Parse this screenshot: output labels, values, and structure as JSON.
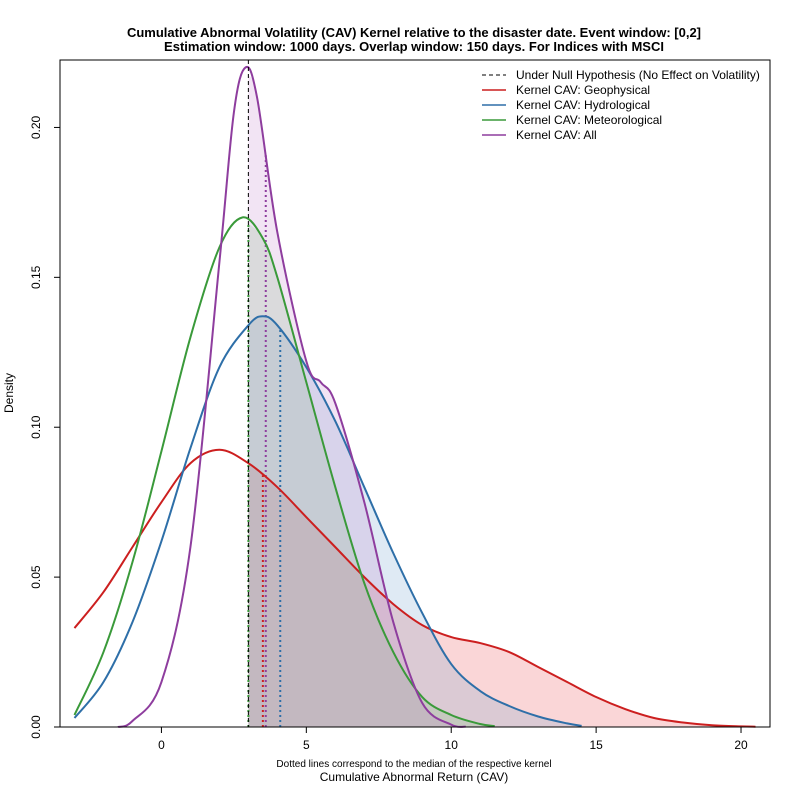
{
  "chart_data": {
    "type": "line",
    "title": "Cumulative Abnormal Volatility (CAV) Kernel relative to the disaster date. Event window: [0,2]",
    "subtitle": "Estimation window: 1000 days. Overlap window: 150 days. For Indices with MSCI",
    "xlabel": "Cumulative Abnormal Return (CAV)",
    "xlabel_note": "Dotted lines correspond to the median of the respective kernel",
    "ylabel": "Density",
    "xlim": [
      -3.5,
      21.0
    ],
    "ylim": [
      0.0,
      0.2225
    ],
    "x_ticks": [
      0,
      5,
      10,
      15,
      20
    ],
    "x_tick_labels": [
      "0",
      "5",
      "10",
      "15",
      "20"
    ],
    "y_ticks": [
      0.0,
      0.05,
      0.1,
      0.15,
      0.2
    ],
    "y_tick_labels": [
      "0.00",
      "0.05",
      "0.10",
      "0.15",
      "0.20"
    ],
    "grid": false,
    "legend_position": "top-right",
    "null_hypothesis": {
      "name": "Under Null Hypothesis (No Effect on Volatility)",
      "x": 3.0,
      "color": "#000000"
    },
    "series": [
      {
        "name": "Kernel CAV: Geophysical",
        "color": "#cc1f1f",
        "fill": "rgba(235,90,95,0.25)",
        "median": 3.5,
        "points": [
          [
            -3.0,
            0.033
          ],
          [
            -2.0,
            0.045
          ],
          [
            -1.0,
            0.06
          ],
          [
            0.0,
            0.075
          ],
          [
            1.0,
            0.088
          ],
          [
            2.0,
            0.0925
          ],
          [
            3.0,
            0.088
          ],
          [
            4.0,
            0.08
          ],
          [
            5.0,
            0.07
          ],
          [
            6.0,
            0.06
          ],
          [
            7.0,
            0.05
          ],
          [
            8.0,
            0.041
          ],
          [
            9.0,
            0.034
          ],
          [
            10.0,
            0.03
          ],
          [
            11.0,
            0.028
          ],
          [
            12.0,
            0.025
          ],
          [
            13.0,
            0.02
          ],
          [
            14.0,
            0.015
          ],
          [
            15.0,
            0.01
          ],
          [
            16.0,
            0.006
          ],
          [
            17.0,
            0.003
          ],
          [
            18.0,
            0.0015
          ],
          [
            19.0,
            0.0006
          ],
          [
            20.0,
            0.0002
          ],
          [
            20.5,
            0.0001
          ]
        ]
      },
      {
        "name": "Kernel CAV: Hydrological",
        "color": "#2e6fa8",
        "fill": "rgba(110,160,205,0.22)",
        "median": 4.1,
        "points": [
          [
            -3.0,
            0.003
          ],
          [
            -2.0,
            0.015
          ],
          [
            -1.0,
            0.035
          ],
          [
            0.0,
            0.062
          ],
          [
            1.0,
            0.093
          ],
          [
            2.0,
            0.12
          ],
          [
            3.0,
            0.134
          ],
          [
            3.5,
            0.137
          ],
          [
            4.0,
            0.134
          ],
          [
            5.0,
            0.12
          ],
          [
            6.0,
            0.102
          ],
          [
            7.0,
            0.08
          ],
          [
            8.0,
            0.058
          ],
          [
            9.0,
            0.038
          ],
          [
            10.0,
            0.021
          ],
          [
            11.0,
            0.012
          ],
          [
            12.0,
            0.007
          ],
          [
            13.0,
            0.0035
          ],
          [
            14.0,
            0.0012
          ],
          [
            14.5,
            0.0004
          ]
        ]
      },
      {
        "name": "Kernel CAV: Meteorological",
        "color": "#3a9a3a",
        "fill": "rgba(120,200,120,0.22)",
        "median": 3.0,
        "points": [
          [
            -3.0,
            0.004
          ],
          [
            -2.0,
            0.025
          ],
          [
            -1.0,
            0.055
          ],
          [
            0.0,
            0.092
          ],
          [
            1.0,
            0.13
          ],
          [
            2.0,
            0.16
          ],
          [
            2.8,
            0.17
          ],
          [
            3.5,
            0.163
          ],
          [
            4.0,
            0.15
          ],
          [
            5.0,
            0.115
          ],
          [
            6.0,
            0.08
          ],
          [
            7.0,
            0.048
          ],
          [
            8.0,
            0.025
          ],
          [
            9.0,
            0.01
          ],
          [
            10.0,
            0.004
          ],
          [
            11.0,
            0.001
          ],
          [
            11.5,
            0.0003
          ]
        ]
      },
      {
        "name": "Kernel CAV: All",
        "color": "#8e3d9e",
        "fill": "rgba(190,120,200,0.20)",
        "median": 3.6,
        "points": [
          [
            -1.5,
            0.0
          ],
          [
            -1.0,
            0.002
          ],
          [
            0.0,
            0.015
          ],
          [
            1.0,
            0.06
          ],
          [
            2.0,
            0.155
          ],
          [
            2.5,
            0.205
          ],
          [
            2.9,
            0.22
          ],
          [
            3.3,
            0.21
          ],
          [
            4.0,
            0.165
          ],
          [
            5.0,
            0.122
          ],
          [
            5.5,
            0.115
          ],
          [
            6.0,
            0.108
          ],
          [
            7.0,
            0.075
          ],
          [
            8.0,
            0.035
          ],
          [
            9.0,
            0.008
          ],
          [
            10.0,
            0.0008
          ],
          [
            10.5,
            0.0001
          ]
        ]
      }
    ]
  }
}
